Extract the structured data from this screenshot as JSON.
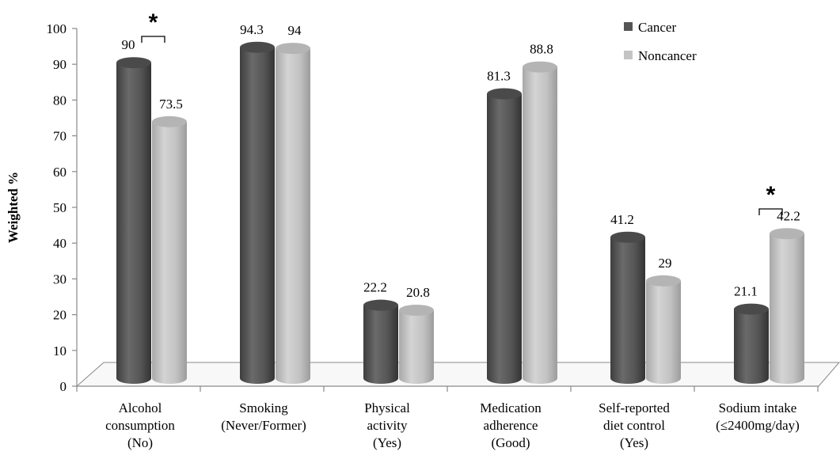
{
  "chart_data": {
    "type": "bar",
    "title": "",
    "xlabel": "",
    "ylabel": "Weighted %",
    "ylim": [
      0,
      100
    ],
    "yticks": [
      0,
      10,
      20,
      30,
      40,
      50,
      60,
      70,
      80,
      90,
      100
    ],
    "categories": [
      [
        "Alcohol",
        "consumption",
        "(No)"
      ],
      [
        "Smoking",
        "(Never/Former)"
      ],
      [
        "Physical",
        "activity",
        "(Yes)"
      ],
      [
        "Medication",
        "adherence",
        "(Good)"
      ],
      [
        "Self-reported",
        "diet control",
        "(Yes)"
      ],
      [
        "Sodium intake",
        "(≤2400mg/day)"
      ]
    ],
    "series": [
      {
        "name": "Cancer",
        "color": "#555555",
        "values": [
          90,
          94.3,
          22.2,
          81.3,
          41.2,
          21.1
        ],
        "labels": [
          "90",
          "94.3",
          "22.2",
          "81.3",
          "41.2",
          "21.1"
        ]
      },
      {
        "name": "Noncancer",
        "color": "#bdbdbd",
        "values": [
          73.5,
          94,
          20.8,
          88.8,
          29,
          42.2
        ],
        "labels": [
          "73.5",
          "94",
          "20.8",
          "88.8",
          "29",
          "42.2"
        ]
      }
    ],
    "significance": [
      {
        "category_index": 0,
        "marker": "*"
      },
      {
        "category_index": 5,
        "marker": "*"
      }
    ],
    "legend_position": "top-right",
    "grid": false
  }
}
